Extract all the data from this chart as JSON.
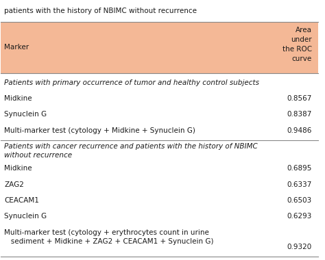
{
  "title_partial": "patients with the history of NBIMC without recurrence",
  "header_col1": "Marker",
  "header_col2": "Area\nunder\nthe ROC\ncurve",
  "header_bg": "#f4b896",
  "section1_label": "Patients with primary occurrence of tumor and healthy control subjects",
  "section1_rows": [
    [
      "Midkine",
      "0.8567"
    ],
    [
      "Synuclein G",
      "0.8387"
    ],
    [
      "Multi-marker test (cytology + Midkine + Synuclein G)",
      "0.9486"
    ]
  ],
  "section2_label": "Patients with cancer recurrence and patients with the history of NBIMC\nwithout recurrence",
  "section2_rows": [
    [
      "Midkine",
      "0.6895"
    ],
    [
      "ZAG2",
      "0.6337"
    ],
    [
      "CEACAM1",
      "0.6503"
    ],
    [
      "Synuclein G",
      "0.6293"
    ],
    [
      "Multi-marker test (cytology + erythrocytes count in urine\n   sediment + Midkine + ZAG2 + CEACAM1 + Synuclein G)",
      "0.9320"
    ]
  ],
  "bg_color": "#ffffff",
  "text_color": "#1a1a1a",
  "line_color": "#888888",
  "header_text_color": "#1a1a1a",
  "font_size": 7.5,
  "section_font_size": 7.5
}
